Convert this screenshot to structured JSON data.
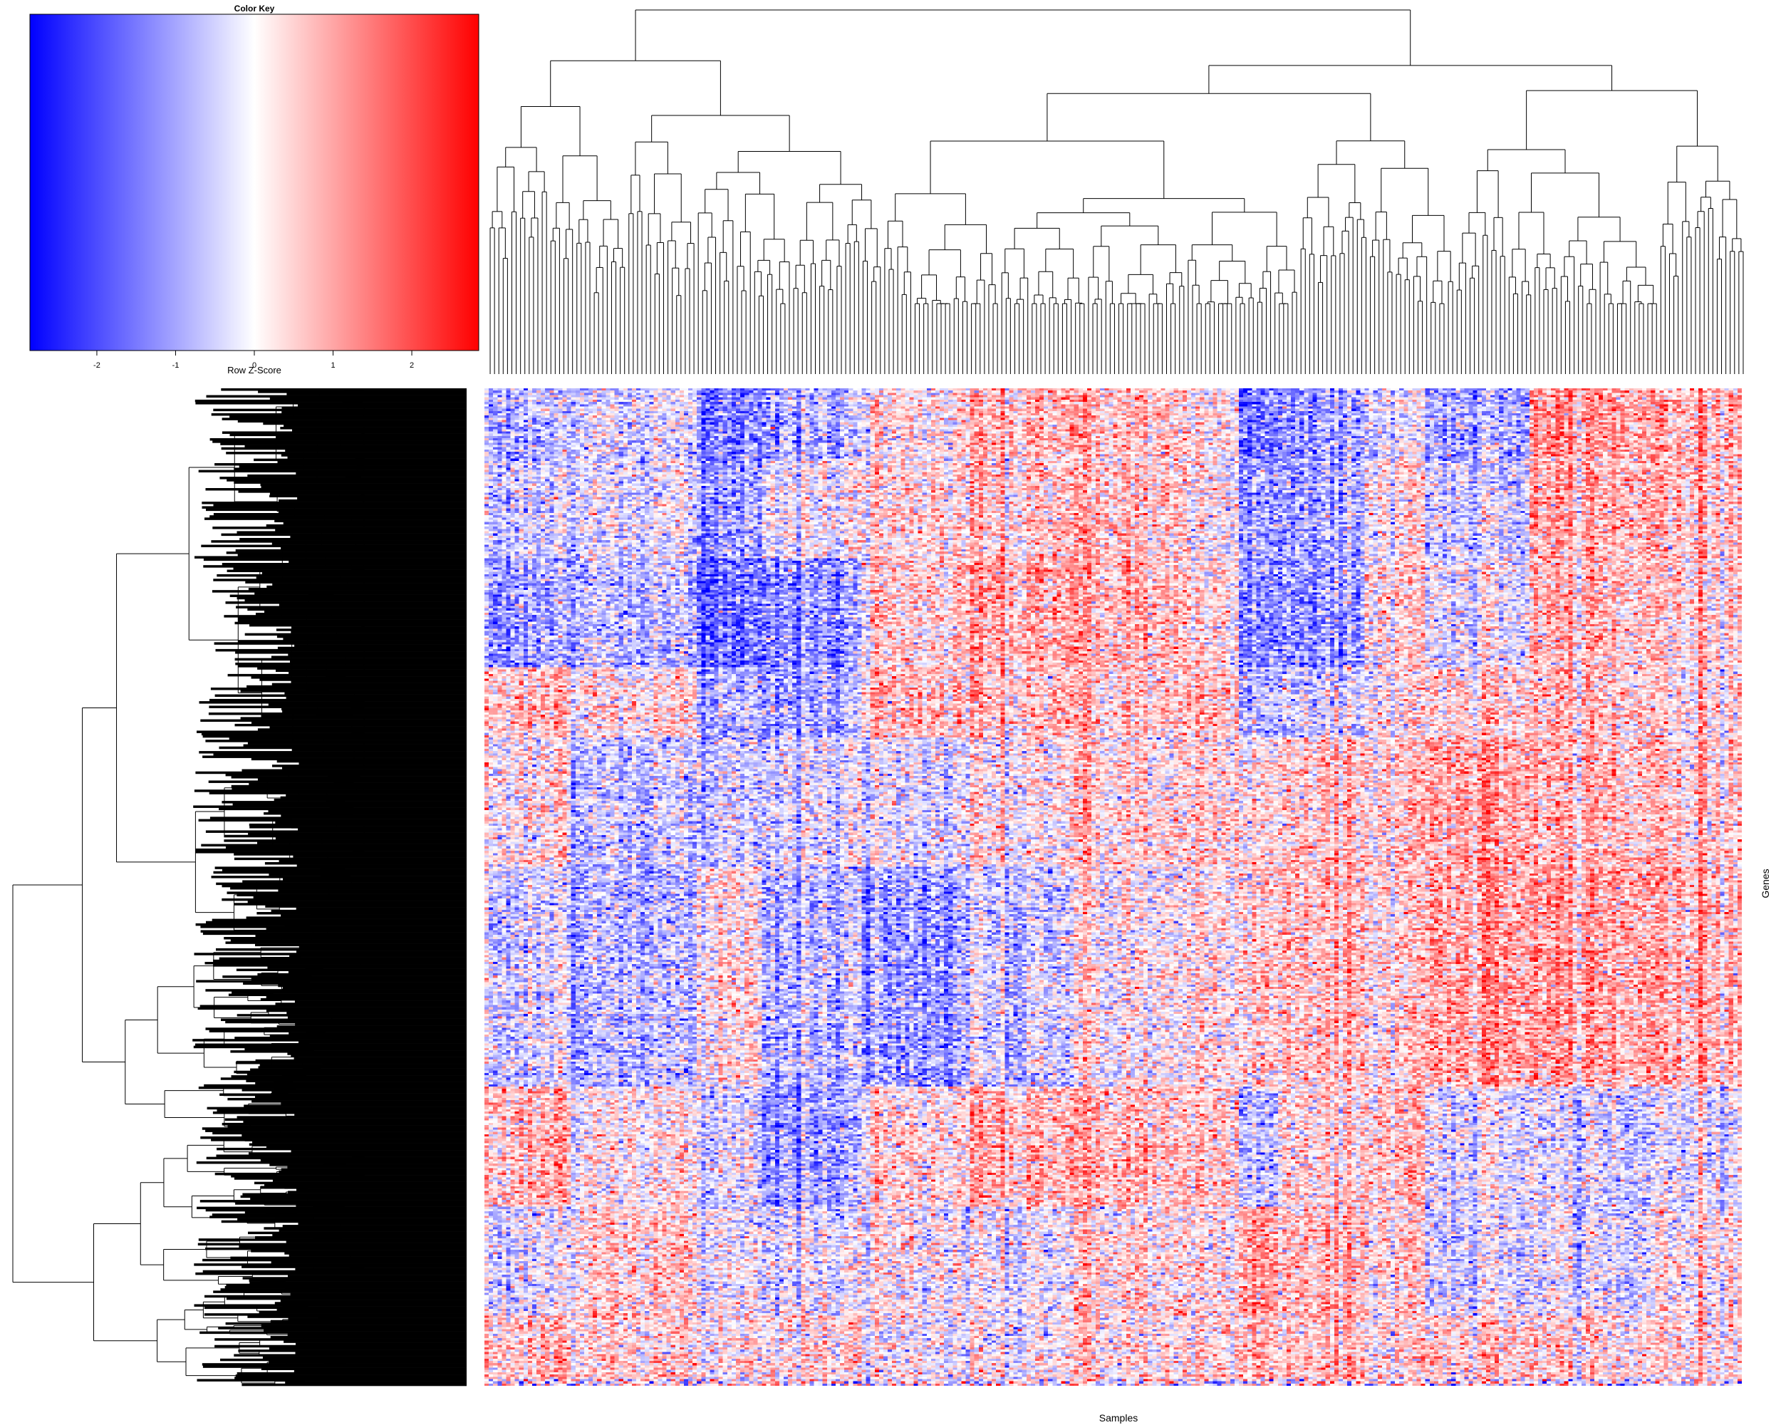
{
  "color_key": {
    "title": "Color Key",
    "xlabel": "Row Z-Score",
    "ticks": [
      "-2",
      "-1",
      "0",
      "1",
      "2"
    ],
    "tick_values": [
      -2,
      -1,
      0,
      1,
      2
    ],
    "range": [
      -2.85,
      2.85
    ],
    "colors": {
      "low": "#0000ff",
      "mid": "#ffffff",
      "high": "#ff0000"
    }
  },
  "axes": {
    "xlabel": "Samples",
    "ylabel": "Genes"
  },
  "chart_data": {
    "type": "heatmap",
    "title": "",
    "xlabel": "Samples",
    "ylabel": "Genes",
    "scale": "row z-score",
    "value_range": [
      -2.85,
      2.85
    ],
    "colormap": [
      "#0000ff",
      "#ffffff",
      "#ff0000"
    ],
    "dendrogram_columns": true,
    "dendrogram_rows": true,
    "n_columns_approx": 290,
    "n_rows_approx": 440,
    "row_labels_shown": false,
    "column_labels_shown": false,
    "blocks": {
      "column_groups": [
        {
          "end": 0.07,
          "levels": [
            -0.6,
            -0.4,
            -0.8,
            0.5,
            0.2,
            -0.3,
            0.6,
            -0.2,
            0.5
          ]
        },
        {
          "end": 0.17,
          "levels": [
            -0.3,
            -0.2,
            -0.6,
            0.2,
            -0.5,
            -0.6,
            0.1,
            0.4,
            0.3
          ]
        },
        {
          "end": 0.22,
          "levels": [
            -1.1,
            -0.9,
            -1.3,
            -0.7,
            -0.4,
            0.2,
            -0.3,
            -0.1,
            0.1
          ]
        },
        {
          "end": 0.3,
          "levels": [
            -0.7,
            -0.1,
            -1.0,
            -0.8,
            -0.3,
            -0.6,
            -0.9,
            -0.2,
            0.2
          ]
        },
        {
          "end": 0.38,
          "levels": [
            0.2,
            0.3,
            0.4,
            0.6,
            -0.2,
            -0.8,
            0.3,
            0.1,
            0.0
          ]
        },
        {
          "end": 0.47,
          "levels": [
            0.6,
            0.4,
            0.7,
            0.5,
            0.1,
            -0.4,
            0.6,
            -0.1,
            -0.1
          ]
        },
        {
          "end": 0.56,
          "levels": [
            0.5,
            0.5,
            0.6,
            0.4,
            0.3,
            0.1,
            0.6,
            0.3,
            0.2
          ]
        },
        {
          "end": 0.6,
          "levels": [
            0.2,
            0.0,
            0.2,
            0.4,
            0.3,
            0.2,
            0.4,
            0.1,
            0.2
          ]
        },
        {
          "end": 0.63,
          "levels": [
            -1.2,
            -0.9,
            -1.0,
            -0.6,
            0.2,
            0.4,
            -0.5,
            0.9,
            0.6
          ]
        },
        {
          "end": 0.7,
          "levels": [
            -0.8,
            -0.7,
            -0.9,
            -0.3,
            0.5,
            0.6,
            0.3,
            0.6,
            0.5
          ]
        },
        {
          "end": 0.75,
          "levels": [
            -0.2,
            0.2,
            0.3,
            0.1,
            0.4,
            0.3,
            0.5,
            0.3,
            0.2
          ]
        },
        {
          "end": 0.83,
          "levels": [
            -0.7,
            -0.4,
            -0.2,
            0.3,
            0.8,
            0.8,
            -0.2,
            -0.3,
            0.4
          ]
        },
        {
          "end": 0.93,
          "levels": [
            0.9,
            0.7,
            0.6,
            0.5,
            0.6,
            0.8,
            -0.3,
            -0.2,
            0.3
          ]
        },
        {
          "end": 1.0,
          "levels": [
            0.7,
            0.6,
            0.4,
            0.3,
            0.5,
            0.7,
            -0.1,
            0.2,
            0.3
          ]
        }
      ],
      "row_group_ends": [
        0.07,
        0.17,
        0.28,
        0.35,
        0.48,
        0.7,
        0.82,
        0.93,
        1.0
      ]
    }
  }
}
